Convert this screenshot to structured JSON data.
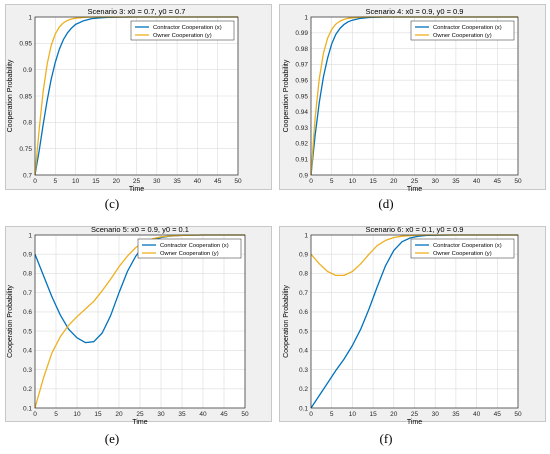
{
  "colors": {
    "x_series": "#0072bd",
    "y_series": "#edb120",
    "axes": "#262626",
    "grid": "#dcdcdc"
  },
  "chart_data": [
    {
      "type": "line",
      "panel_label": "(c)",
      "title": "Scenario 3: x0 = 0.7, y0 = 0.7",
      "xlabel": "Time",
      "ylabel": "Cooperation Probability",
      "xlim": [
        0,
        50
      ],
      "ylim": [
        0.7,
        1
      ],
      "xticks": [
        "0",
        "5",
        "10",
        "15",
        "20",
        "25",
        "30",
        "35",
        "40",
        "45",
        "50"
      ],
      "yticks": [
        "0.7",
        "0.75",
        "0.8",
        "0.85",
        "0.9",
        "0.95",
        "1"
      ],
      "grid": true,
      "legend_position": "top-right",
      "x": [
        0,
        1,
        2,
        3,
        4,
        5,
        6,
        7,
        8,
        9,
        10,
        12,
        14,
        16,
        18,
        20,
        22,
        25,
        30,
        35,
        40,
        45,
        50
      ],
      "series": [
        {
          "name": "Contractor Cooperation (x)",
          "values": [
            0.7,
            0.745,
            0.795,
            0.842,
            0.882,
            0.914,
            0.939,
            0.957,
            0.97,
            0.979,
            0.986,
            0.993,
            0.997,
            0.9985,
            0.9993,
            0.9997,
            0.9998,
            1,
            1,
            1,
            1,
            1,
            1
          ]
        },
        {
          "name": "Owner Cooperation (y)",
          "values": [
            0.7,
            0.785,
            0.858,
            0.911,
            0.946,
            0.968,
            0.981,
            0.989,
            0.9935,
            0.9962,
            0.9978,
            0.9993,
            0.9998,
            1,
            1,
            1,
            1,
            1,
            1,
            1,
            1,
            1,
            1
          ]
        }
      ]
    },
    {
      "type": "line",
      "panel_label": "(d)",
      "title": "Scenario 4: x0 = 0.9, y0 = 0.9",
      "xlabel": "Time",
      "ylabel": "Cooperation Probability",
      "xlim": [
        0,
        50
      ],
      "ylim": [
        0.9,
        1
      ],
      "xticks": [
        "0",
        "5",
        "10",
        "15",
        "20",
        "25",
        "30",
        "35",
        "40",
        "45",
        "50"
      ],
      "yticks": [
        "0.9",
        "0.91",
        "0.92",
        "0.93",
        "0.94",
        "0.95",
        "0.96",
        "0.97",
        "0.98",
        "0.99",
        "1"
      ],
      "grid": true,
      "legend_position": "top-right",
      "x": [
        0,
        1,
        2,
        3,
        4,
        5,
        6,
        7,
        8,
        9,
        10,
        12,
        14,
        16,
        18,
        20,
        25,
        30,
        35,
        40,
        45,
        50
      ],
      "series": [
        {
          "name": "Contractor Cooperation (x)",
          "values": [
            0.9,
            0.925,
            0.946,
            0.962,
            0.974,
            0.983,
            0.989,
            0.9928,
            0.9953,
            0.997,
            0.998,
            0.9992,
            0.9997,
            0.9999,
            1,
            1,
            1,
            1,
            1,
            1,
            1,
            1
          ]
        },
        {
          "name": "Owner Cooperation (y)",
          "values": [
            0.9,
            0.936,
            0.961,
            0.977,
            0.9865,
            0.9922,
            0.9955,
            0.9974,
            0.9985,
            0.9992,
            0.9995,
            0.9999,
            1,
            1,
            1,
            1,
            1,
            1,
            1,
            1,
            1,
            1
          ]
        }
      ]
    },
    {
      "type": "line",
      "panel_label": "(e)",
      "title": "Scenario 5: x0 = 0.9, y0 = 0.1",
      "xlabel": "Time",
      "ylabel": "Cooperation Probability",
      "xlim": [
        0,
        50
      ],
      "ylim": [
        0.1,
        1
      ],
      "xticks": [
        "0",
        "5",
        "10",
        "15",
        "20",
        "25",
        "30",
        "35",
        "40",
        "45",
        "50"
      ],
      "yticks": [
        "0.1",
        "0.2",
        "0.3",
        "0.4",
        "0.5",
        "0.6",
        "0.7",
        "0.8",
        "0.9",
        "1"
      ],
      "grid": true,
      "legend_position": "top-right",
      "x": [
        0,
        2,
        4,
        6,
        8,
        10,
        12,
        14,
        16,
        18,
        20,
        22,
        24,
        26,
        28,
        30,
        32,
        35,
        40,
        45,
        50
      ],
      "series": [
        {
          "name": "Contractor Cooperation (x)",
          "values": [
            0.9,
            0.79,
            0.68,
            0.585,
            0.51,
            0.465,
            0.44,
            0.445,
            0.49,
            0.58,
            0.7,
            0.81,
            0.89,
            0.945,
            0.973,
            0.987,
            0.994,
            0.998,
            1,
            1,
            1
          ]
        },
        {
          "name": "Owner Cooperation (y)",
          "values": [
            0.1,
            0.255,
            0.385,
            0.47,
            0.53,
            0.575,
            0.615,
            0.655,
            0.71,
            0.77,
            0.835,
            0.89,
            0.935,
            0.963,
            0.98,
            0.99,
            0.995,
            0.998,
            1,
            1,
            1
          ]
        }
      ]
    },
    {
      "type": "line",
      "panel_label": "(f)",
      "title": "Scenario 6: x0 = 0.1, y0 = 0.9",
      "xlabel": "Time",
      "ylabel": "Cooperation Probability",
      "xlim": [
        0,
        50
      ],
      "ylim": [
        0.1,
        1
      ],
      "xticks": [
        "0",
        "5",
        "10",
        "15",
        "20",
        "25",
        "30",
        "35",
        "40",
        "45",
        "50"
      ],
      "yticks": [
        "0.1",
        "0.2",
        "0.3",
        "0.4",
        "0.5",
        "0.6",
        "0.7",
        "0.8",
        "0.9",
        "1"
      ],
      "grid": true,
      "legend_position": "top-right",
      "x": [
        0,
        2,
        4,
        6,
        8,
        10,
        12,
        14,
        16,
        18,
        20,
        22,
        24,
        26,
        28,
        30,
        35,
        40,
        45,
        50
      ],
      "series": [
        {
          "name": "Contractor Cooperation (x)",
          "values": [
            0.1,
            0.165,
            0.23,
            0.295,
            0.355,
            0.425,
            0.51,
            0.615,
            0.73,
            0.84,
            0.92,
            0.965,
            0.985,
            0.994,
            0.998,
            0.999,
            1,
            1,
            1,
            1
          ]
        },
        {
          "name": "Owner Cooperation (y)",
          "values": [
            0.9,
            0.85,
            0.81,
            0.79,
            0.79,
            0.81,
            0.85,
            0.9,
            0.945,
            0.972,
            0.987,
            0.994,
            0.997,
            0.999,
            1,
            1,
            1,
            1,
            1,
            1
          ]
        }
      ]
    }
  ]
}
